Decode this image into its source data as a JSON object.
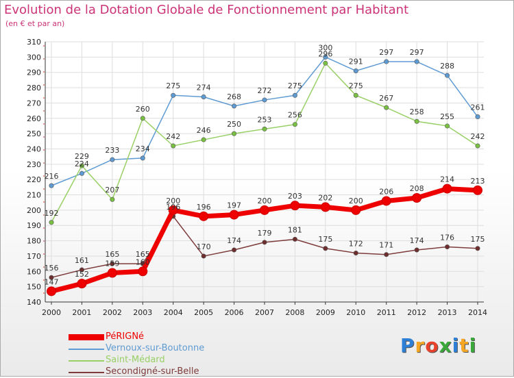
{
  "title": "Evolution de la Dotation Globale de Fonctionnement par Habitant",
  "subtitle": "(en € et par an)",
  "logo": {
    "text": "Proxiti",
    "letter_colors": [
      "#2e7fd6",
      "#f5a623",
      "#e8412c",
      "#3aa83a",
      "#2e7fd6",
      "#f5a623",
      "#3aa83a"
    ]
  },
  "chart_data": {
    "type": "line",
    "title": "Evolution de la Dotation Globale de Fonctionnement par Habitant",
    "subtitle": "(en € et par an)",
    "xlabel": "",
    "ylabel": "",
    "x": [
      "2000",
      "2001",
      "2002",
      "2003",
      "2004",
      "2005",
      "2006",
      "2007",
      "2008",
      "2009",
      "2010",
      "2011",
      "2012",
      "2013",
      "2014"
    ],
    "ylim": [
      140,
      310
    ],
    "yticks": [
      140,
      150,
      160,
      170,
      180,
      190,
      200,
      210,
      220,
      230,
      240,
      250,
      260,
      270,
      280,
      290,
      300,
      310
    ],
    "grid": true,
    "legend_position": "bottom-left",
    "series": [
      {
        "name": "Vernoux-sur-Boutonne",
        "color": "#5f9bd3",
        "marker": "#5f9bd3",
        "values": [
          216,
          224,
          233,
          234,
          275,
          274,
          268,
          272,
          275,
          300,
          291,
          297,
          297,
          288,
          261
        ]
      },
      {
        "name": "Saint-Médard",
        "color": "#99d066",
        "marker": "#7ac143",
        "values": [
          192,
          229,
          207,
          260,
          242,
          246,
          250,
          253,
          256,
          296,
          275,
          267,
          258,
          255,
          242
        ]
      },
      {
        "name": "Secondigné-sur-Belle",
        "color": "#7d3b3b",
        "marker": "#6e2e2e",
        "values": [
          156,
          161,
          165,
          165,
          196,
          170,
          174,
          179,
          181,
          175,
          172,
          171,
          174,
          176,
          175
        ]
      },
      {
        "name": "PéRIGNé",
        "color": "#ee0000",
        "marker": "#ee0000",
        "values": [
          147,
          152,
          159,
          160,
          200,
          196,
          197,
          200,
          203,
          202,
          200,
          206,
          208,
          214,
          213
        ]
      }
    ],
    "legend_order": [
      "PéRIGNé",
      "Vernoux-sur-Boutonne",
      "Saint-Médard",
      "Secondigné-sur-Belle"
    ]
  }
}
